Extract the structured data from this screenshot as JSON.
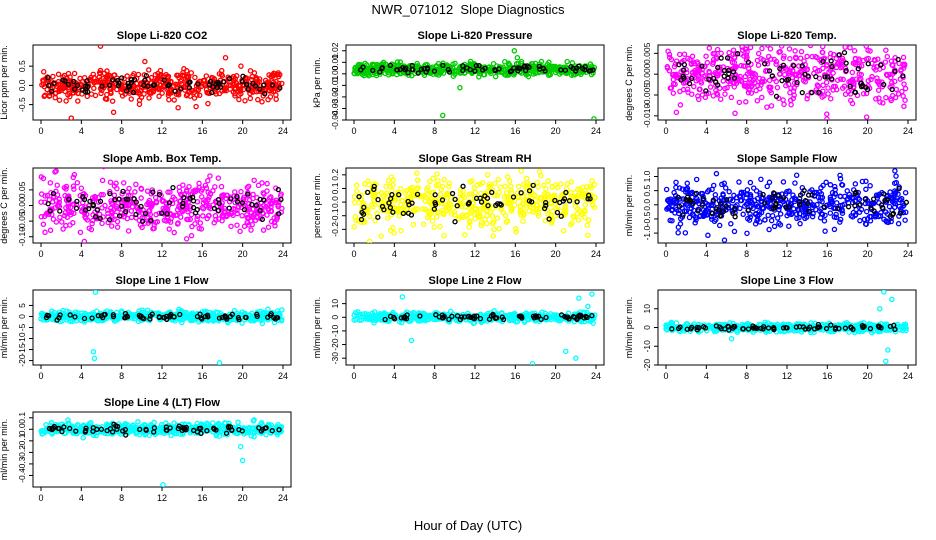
{
  "title": "NWR_071012  Slope Diagnostics",
  "xlabel": "Hour of Day (UTC)",
  "chart_data": [
    {
      "type": "scatter",
      "title": "Slope Li-820 CO2",
      "ylabel": "Licor ppm per min.",
      "xlim": [
        0,
        24
      ],
      "xticks": [
        0,
        4,
        8,
        12,
        16,
        20,
        24
      ],
      "ylim": [
        -0.9,
        1.05
      ],
      "yticks": [
        -0.5,
        0,
        0.5
      ],
      "ytick_labels": [
        "-0.5",
        "0.0",
        "0.5"
      ],
      "color": "#ff0000",
      "spread": 0.2,
      "outliers": [
        [
          5.9,
          1.02
        ],
        [
          7.2,
          -0.7
        ],
        [
          10.3,
          0.62
        ],
        [
          13.6,
          -0.58
        ],
        [
          18.3,
          0.72
        ],
        [
          3.0,
          -0.85
        ]
      ]
    },
    {
      "type": "scatter",
      "title": "Slope Li-820 Pressure",
      "ylabel": "kPa per min.",
      "xlim": [
        0,
        24
      ],
      "xticks": [
        0,
        4,
        8,
        12,
        16,
        20,
        24
      ],
      "ylim": [
        -0.04,
        0.025
      ],
      "yticks": [
        -0.04,
        -0.03,
        -0.02,
        -0.01,
        0.0,
        0.01,
        0.02
      ],
      "ytick_labels": [
        "-0.04",
        "-0.03",
        "-0.02",
        "-0.01",
        "0.00",
        "0.01",
        "0.02"
      ],
      "color": "#00cc00",
      "spread": 0.003,
      "outliers": [
        [
          8.8,
          -0.036
        ],
        [
          23.8,
          -0.039
        ],
        [
          15.9,
          0.02
        ],
        [
          16.2,
          0.014
        ],
        [
          10.5,
          -0.012
        ]
      ]
    },
    {
      "type": "scatter",
      "title": "Slope Li-820 Temp.",
      "ylabel": "degrees C per min.",
      "xlim": [
        0,
        24
      ],
      "xticks": [
        0,
        4,
        8,
        12,
        16,
        20,
        24
      ],
      "ylim": [
        -0.011,
        0.007
      ],
      "yticks": [
        -0.01,
        -0.005,
        0.0,
        0.005
      ],
      "ytick_labels": [
        "-0.010",
        "-0.005",
        "0.000",
        "0.005"
      ],
      "color": "#ff00ff",
      "spread": 0.004,
      "outliers": [
        [
          19.9,
          -0.0103
        ],
        [
          7.6,
          0.0058
        ]
      ]
    },
    {
      "type": "scatter",
      "title": "Slope Amb. Box Temp.",
      "ylabel": "degrees C per min.",
      "xlim": [
        0,
        24
      ],
      "xticks": [
        0,
        4,
        8,
        12,
        16,
        20,
        24
      ],
      "ylim": [
        -0.12,
        0.12
      ],
      "yticks": [
        -0.1,
        -0.05,
        0.0,
        0.05
      ],
      "ytick_labels": [
        "-0.10",
        "-0.05",
        "0.00",
        "0.05"
      ],
      "color": "#ff00ff",
      "spread": 0.045,
      "outliers": [
        [
          1.5,
          0.11
        ],
        [
          4.3,
          -0.115
        ],
        [
          3.2,
          0.09
        ]
      ]
    },
    {
      "type": "scatter",
      "title": "Slope Gas Stream RH",
      "ylabel": "percent per min.",
      "xlim": [
        0,
        24
      ],
      "xticks": [
        0,
        4,
        8,
        12,
        16,
        20,
        24
      ],
      "ylim": [
        -0.3,
        0.25
      ],
      "yticks": [
        -0.2,
        -0.1,
        0.0,
        0.1,
        0.2
      ],
      "ytick_labels": [
        "-0.2",
        "-0.1",
        "0.0",
        "0.1",
        "0.2"
      ],
      "color": "#ffff00",
      "spread": 0.1,
      "outliers": [
        [
          2.7,
          -0.25
        ],
        [
          11.0,
          -0.24
        ]
      ]
    },
    {
      "type": "scatter",
      "title": "Slope Sample Flow",
      "ylabel": "ml/min per min.",
      "xlim": [
        0,
        24
      ],
      "xticks": [
        0,
        4,
        8,
        12,
        16,
        20,
        24
      ],
      "ylim": [
        -1.35,
        1.3
      ],
      "yticks": [
        -1.0,
        -0.5,
        0.0,
        0.5,
        1.0
      ],
      "ytick_labels": [
        "-1.0",
        "-0.5",
        "0.0",
        "0.5",
        "1.0"
      ],
      "color": "#0000ff",
      "spread": 0.4,
      "outliers": [
        [
          5.8,
          -1.25
        ],
        [
          22.7,
          1.2
        ],
        [
          5.0,
          1.1
        ]
      ]
    },
    {
      "type": "scatter",
      "title": "Slope Line 1 Flow",
      "ylabel": "ml/min per min.",
      "xlim": [
        0,
        24
      ],
      "xticks": [
        0,
        4,
        8,
        12,
        16,
        20,
        24
      ],
      "ylim": [
        -22,
        12
      ],
      "yticks": [
        -20,
        -15,
        -10,
        -5,
        0,
        5
      ],
      "ytick_labels": [
        "-20",
        "-15",
        "-10",
        "-5",
        "0",
        "5"
      ],
      "color": "#00ffff",
      "spread": 1.3,
      "outliers": [
        [
          5.2,
          -16
        ],
        [
          5.3,
          -19
        ],
        [
          5.4,
          11
        ],
        [
          17.7,
          -21
        ]
      ]
    },
    {
      "type": "scatter",
      "title": "Slope Line 2 Flow",
      "ylabel": "ml/min per min.",
      "xlim": [
        0,
        24
      ],
      "xticks": [
        0,
        4,
        8,
        12,
        16,
        20,
        24
      ],
      "ylim": [
        -35,
        20
      ],
      "yticks": [
        -30,
        -20,
        -10,
        0,
        10
      ],
      "ytick_labels": [
        "-30",
        "-20",
        "-10",
        "0",
        "10"
      ],
      "color": "#00ffff",
      "spread": 1.8,
      "outliers": [
        [
          4.8,
          15
        ],
        [
          5.7,
          -17
        ],
        [
          17.7,
          -34
        ],
        [
          21.0,
          -25
        ],
        [
          22.0,
          -30
        ],
        [
          22.3,
          14
        ],
        [
          23.6,
          17
        ],
        [
          23.2,
          8
        ]
      ]
    },
    {
      "type": "scatter",
      "title": "Slope Line 3 Flow",
      "ylabel": "ml/min per min.",
      "xlim": [
        0,
        24
      ],
      "xticks": [
        0,
        4,
        8,
        12,
        16,
        20,
        24
      ],
      "ylim": [
        -20,
        20
      ],
      "yticks": [
        -20,
        -10,
        0,
        10
      ],
      "ytick_labels": [
        "-20",
        "-10",
        "0",
        "10"
      ],
      "color": "#00ffff",
      "spread": 1.2,
      "outliers": [
        [
          21.2,
          10
        ],
        [
          21.6,
          19
        ],
        [
          22.0,
          -12
        ],
        [
          22.4,
          15
        ],
        [
          21.8,
          -18
        ],
        [
          6.5,
          -6
        ]
      ]
    },
    {
      "type": "scatter",
      "title": "Slope Line 4 (LT) Flow",
      "ylabel": "ml/min per min.",
      "xlim": [
        0,
        24
      ],
      "xticks": [
        0,
        4,
        8,
        12,
        16,
        20,
        24
      ],
      "ylim": [
        -0.5,
        0.15
      ],
      "yticks": [
        -0.4,
        -0.3,
        -0.2,
        -0.1,
        0.0,
        0.1
      ],
      "ytick_labels": [
        "-0.4",
        "-0.3",
        "-0.2",
        "-0.1",
        "0.0",
        "0.1"
      ],
      "color": "#00ffff",
      "spread": 0.03,
      "outliers": [
        [
          12.1,
          -0.48
        ],
        [
          20.0,
          -0.27
        ],
        [
          19.8,
          -0.15
        ]
      ]
    }
  ]
}
